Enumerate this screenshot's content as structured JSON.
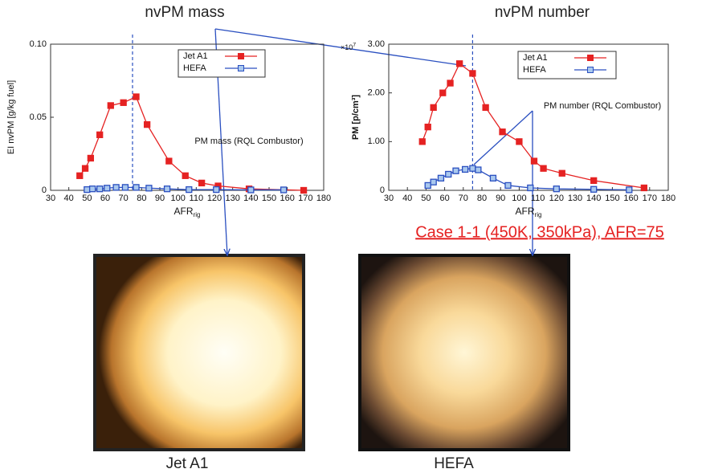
{
  "chart_data": [
    {
      "type": "line",
      "title": "nvPM mass",
      "x_label": "AFR",
      "x_label_sub": "rig",
      "y_label": "EI nvPM [g/kg fuel]",
      "annotation": "PM mass (RQL Combustor)",
      "xlim": [
        30,
        180
      ],
      "xticks": [
        30,
        40,
        50,
        60,
        70,
        80,
        90,
        100,
        110,
        120,
        130,
        140,
        150,
        160,
        170,
        180
      ],
      "ylim": [
        0,
        0.1
      ],
      "yticks": [
        0,
        0.05,
        {
          "value": 0.1,
          "label": "0.10"
        }
      ],
      "vline": 75,
      "series": [
        {
          "name": "Jet A1",
          "color": "#e52222",
          "x": [
            46,
            49,
            52,
            57,
            63,
            70,
            77,
            83,
            95,
            104,
            113,
            122,
            139,
            169
          ],
          "values": [
            0.01,
            0.015,
            0.022,
            0.038,
            0.058,
            0.06,
            0.064,
            0.045,
            0.02,
            0.01,
            0.005,
            0.003,
            0.001,
            0
          ]
        },
        {
          "name": "HEFA",
          "color": "#2a4fc0",
          "x": [
            50,
            53,
            57,
            61,
            66,
            71,
            77,
            84,
            94,
            106,
            121,
            140,
            158
          ],
          "values": [
            0.0005,
            0.001,
            0.001,
            0.0015,
            0.002,
            0.002,
            0.002,
            0.0015,
            0.001,
            0.0005,
            0.0005,
            0.0003,
            0.0003
          ]
        }
      ]
    },
    {
      "type": "line",
      "title": "nvPM number",
      "x_label": "AFR",
      "x_label_sub": "rig",
      "y_label": "PM [p/cm³]",
      "multiplier": "×10",
      "multiplier_exp": "7",
      "annotation": "PM number (RQL Combustor)",
      "xlim": [
        30,
        180
      ],
      "xticks": [
        30,
        40,
        50,
        60,
        70,
        80,
        90,
        100,
        110,
        120,
        130,
        140,
        150,
        160,
        170,
        180
      ],
      "ylim": [
        0,
        3
      ],
      "yticks": [
        0,
        {
          "value": 1,
          "label": "1.00"
        },
        {
          "value": 2,
          "label": "2.00"
        },
        {
          "value": 3,
          "label": "3.00"
        }
      ],
      "vline": 75,
      "series": [
        {
          "name": "Jet A1",
          "color": "#e52222",
          "x": [
            48,
            51,
            54,
            59,
            63,
            68,
            75,
            82,
            91,
            100,
            108,
            113,
            123,
            140,
            167
          ],
          "values": [
            1.0,
            1.3,
            1.7,
            2.0,
            2.2,
            2.6,
            2.4,
            1.7,
            1.2,
            1.0,
            0.6,
            0.45,
            0.35,
            0.2,
            0.05
          ]
        },
        {
          "name": "HEFA",
          "color": "#2a4fc0",
          "x": [
            51,
            54,
            58,
            62,
            66,
            71,
            75,
            78,
            86,
            94,
            106,
            120,
            140,
            159
          ],
          "values": [
            0.1,
            0.17,
            0.25,
            0.33,
            0.4,
            0.43,
            0.45,
            0.42,
            0.25,
            0.1,
            0.05,
            0.03,
            0.02,
            0.01
          ]
        }
      ]
    }
  ],
  "case_label": "Case 1-1 (450K, 350kPa), AFR=75",
  "images": [
    {
      "caption": "Jet A1"
    },
    {
      "caption": "HEFA"
    }
  ]
}
